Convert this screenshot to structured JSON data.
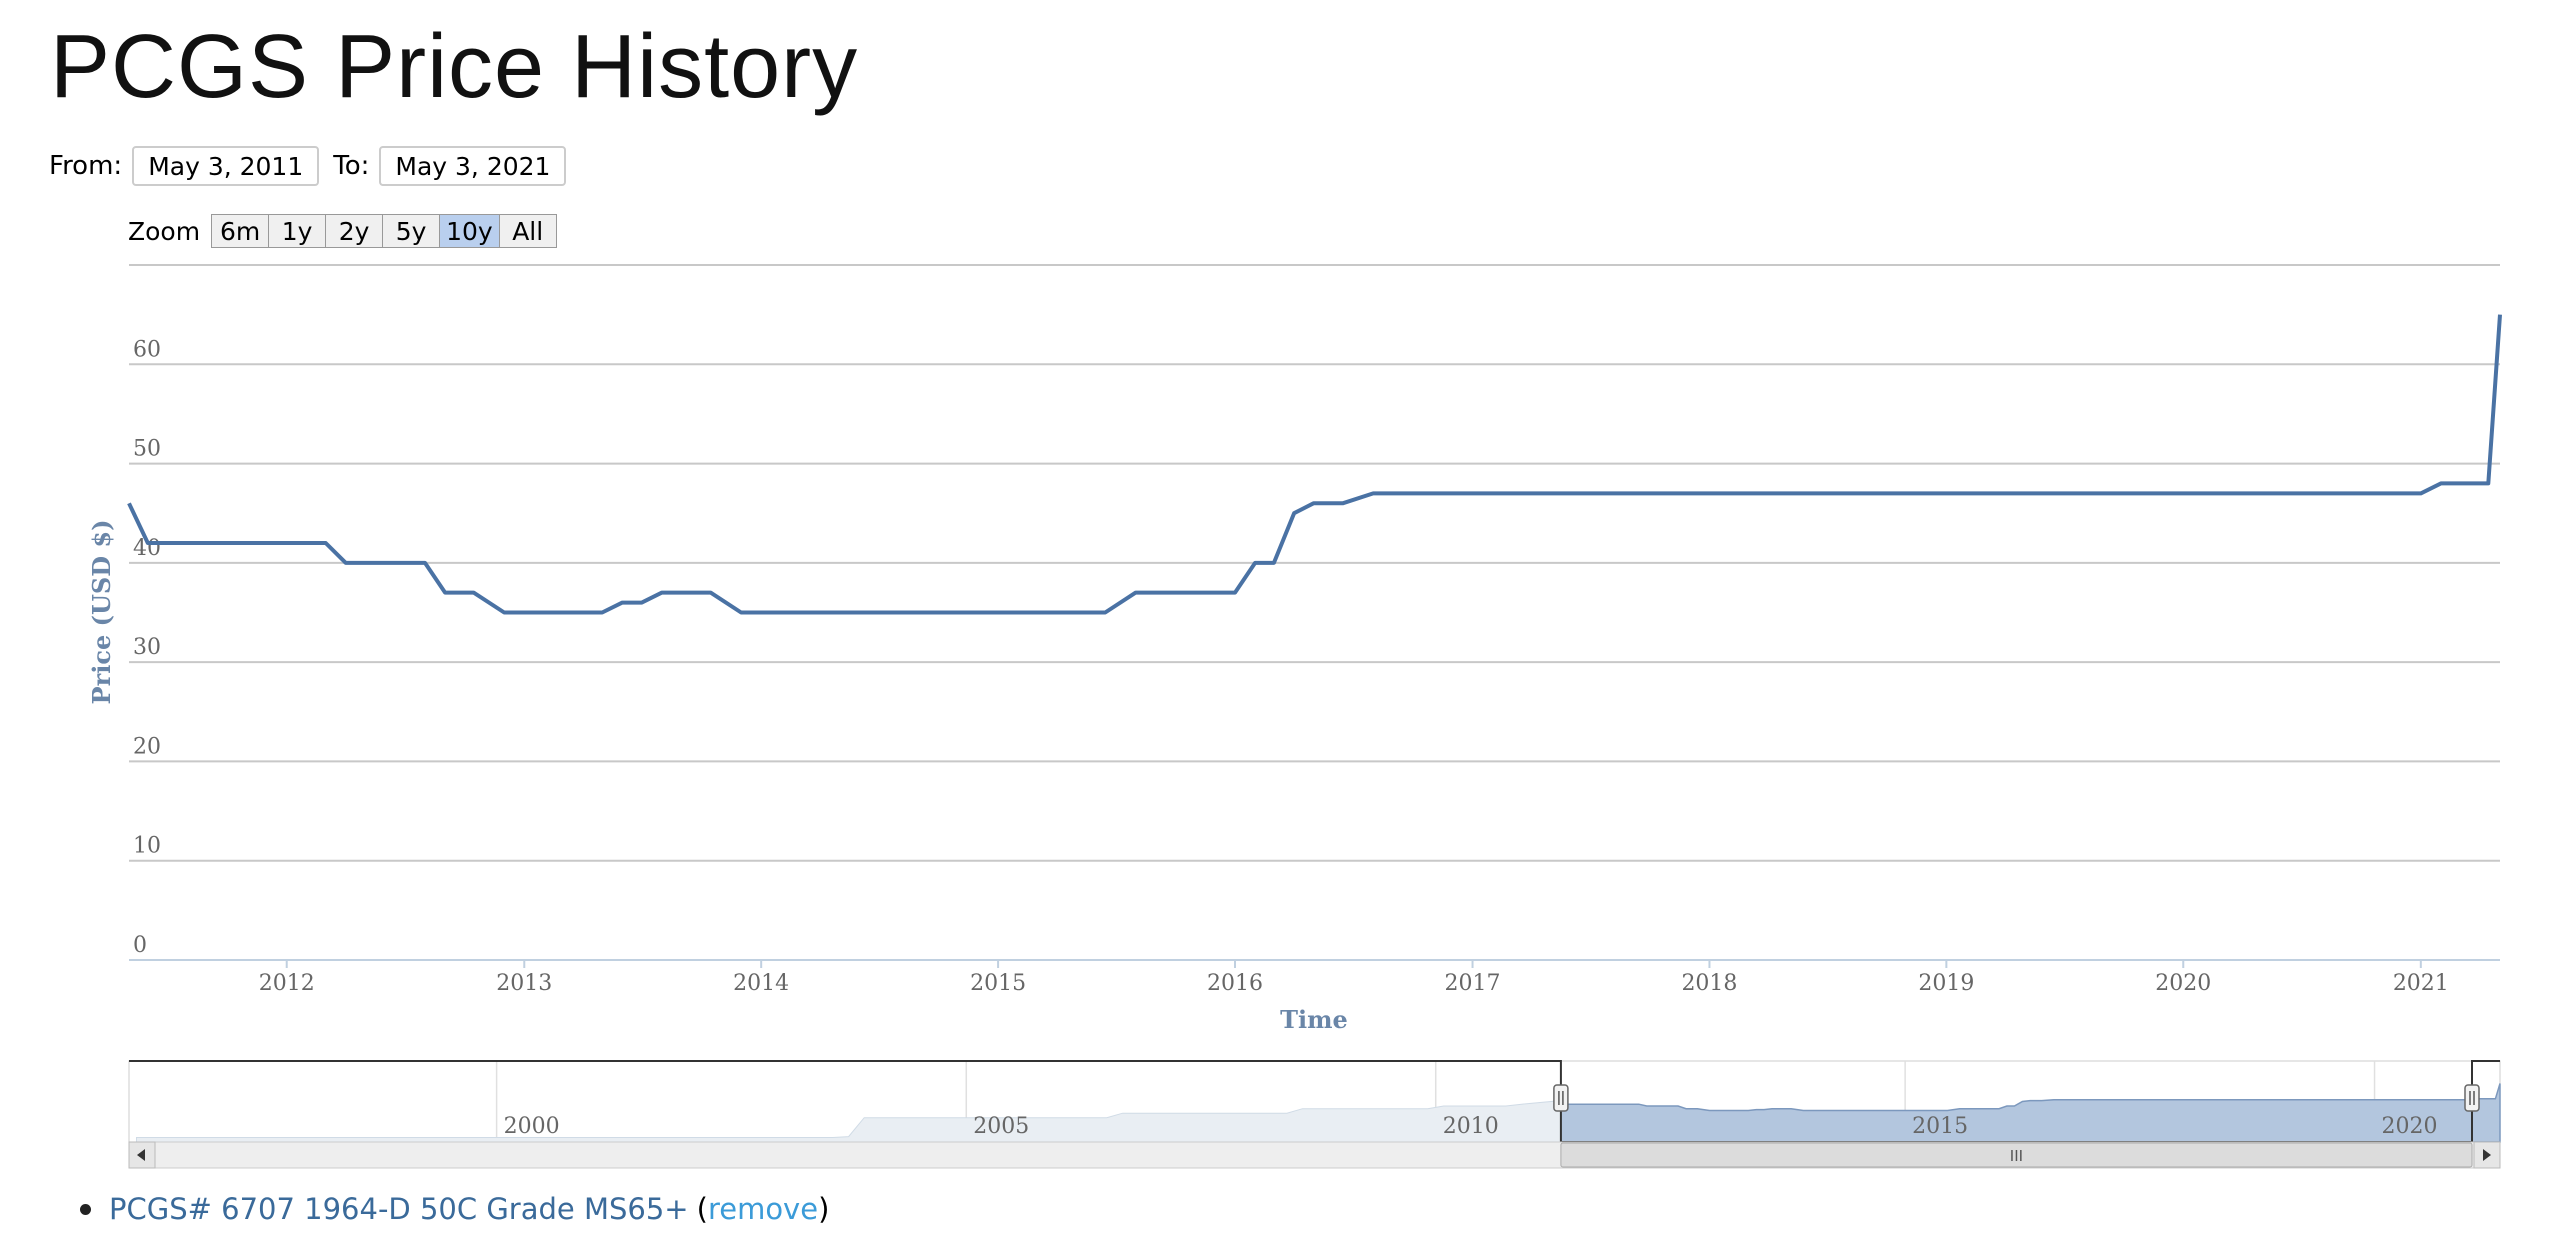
{
  "page": {
    "title": "PCGS Price History"
  },
  "range": {
    "from_label": "From:",
    "from_value": "May 3, 2011",
    "to_label": "To:",
    "to_value": "May 3, 2021"
  },
  "zoom": {
    "label": "Zoom",
    "buttons": [
      "6m",
      "1y",
      "2y",
      "5y",
      "10y",
      "All"
    ],
    "selected": "10y"
  },
  "chart_data": {
    "type": "line",
    "title": "",
    "xlabel": "Time",
    "ylabel": "Price (USD $)",
    "ylim": [
      0,
      70
    ],
    "yticks": [
      0,
      10,
      20,
      30,
      40,
      50,
      60
    ],
    "xlim": [
      "2011-05-03",
      "2021-05-03"
    ],
    "xticks": [
      "2012",
      "2013",
      "2014",
      "2015",
      "2016",
      "2017",
      "2018",
      "2019",
      "2020",
      "2021"
    ],
    "grid": true,
    "series": [
      {
        "color": "#4a72a4",
        "x": [
          "2011-05-03",
          "2011-06-01",
          "2012-03-01",
          "2012-04-01",
          "2012-08-01",
          "2012-09-01",
          "2012-10-15",
          "2012-12-01",
          "2013-05-01",
          "2013-06-01",
          "2013-07-01",
          "2013-08-01",
          "2013-10-15",
          "2013-12-01",
          "2015-06-15",
          "2015-08-01",
          "2016-01-01",
          "2016-02-01",
          "2016-03-01",
          "2016-04-01",
          "2016-05-01",
          "2016-06-15",
          "2016-08-01",
          "2021-01-01",
          "2021-02-01",
          "2021-04-15",
          "2021-05-03"
        ],
        "values": [
          46,
          42,
          42,
          40,
          40,
          37,
          37,
          35,
          35,
          36,
          36,
          37,
          37,
          35,
          35,
          37,
          37,
          40,
          40,
          45,
          46,
          46,
          47,
          47,
          48,
          48,
          65
        ]
      }
    ]
  },
  "navigator": {
    "xticks": [
      "2000",
      "2005",
      "2010",
      "2015",
      "2020"
    ],
    "range_from": "2011-05-03",
    "range_to": "2021-05-03",
    "scroll_thumb_glyph": "III"
  },
  "legend": {
    "coin": "PCGS# 6707 1964-D 50C Grade MS65+",
    "open_paren": "(",
    "remove": "remove",
    "close_paren": ")"
  }
}
